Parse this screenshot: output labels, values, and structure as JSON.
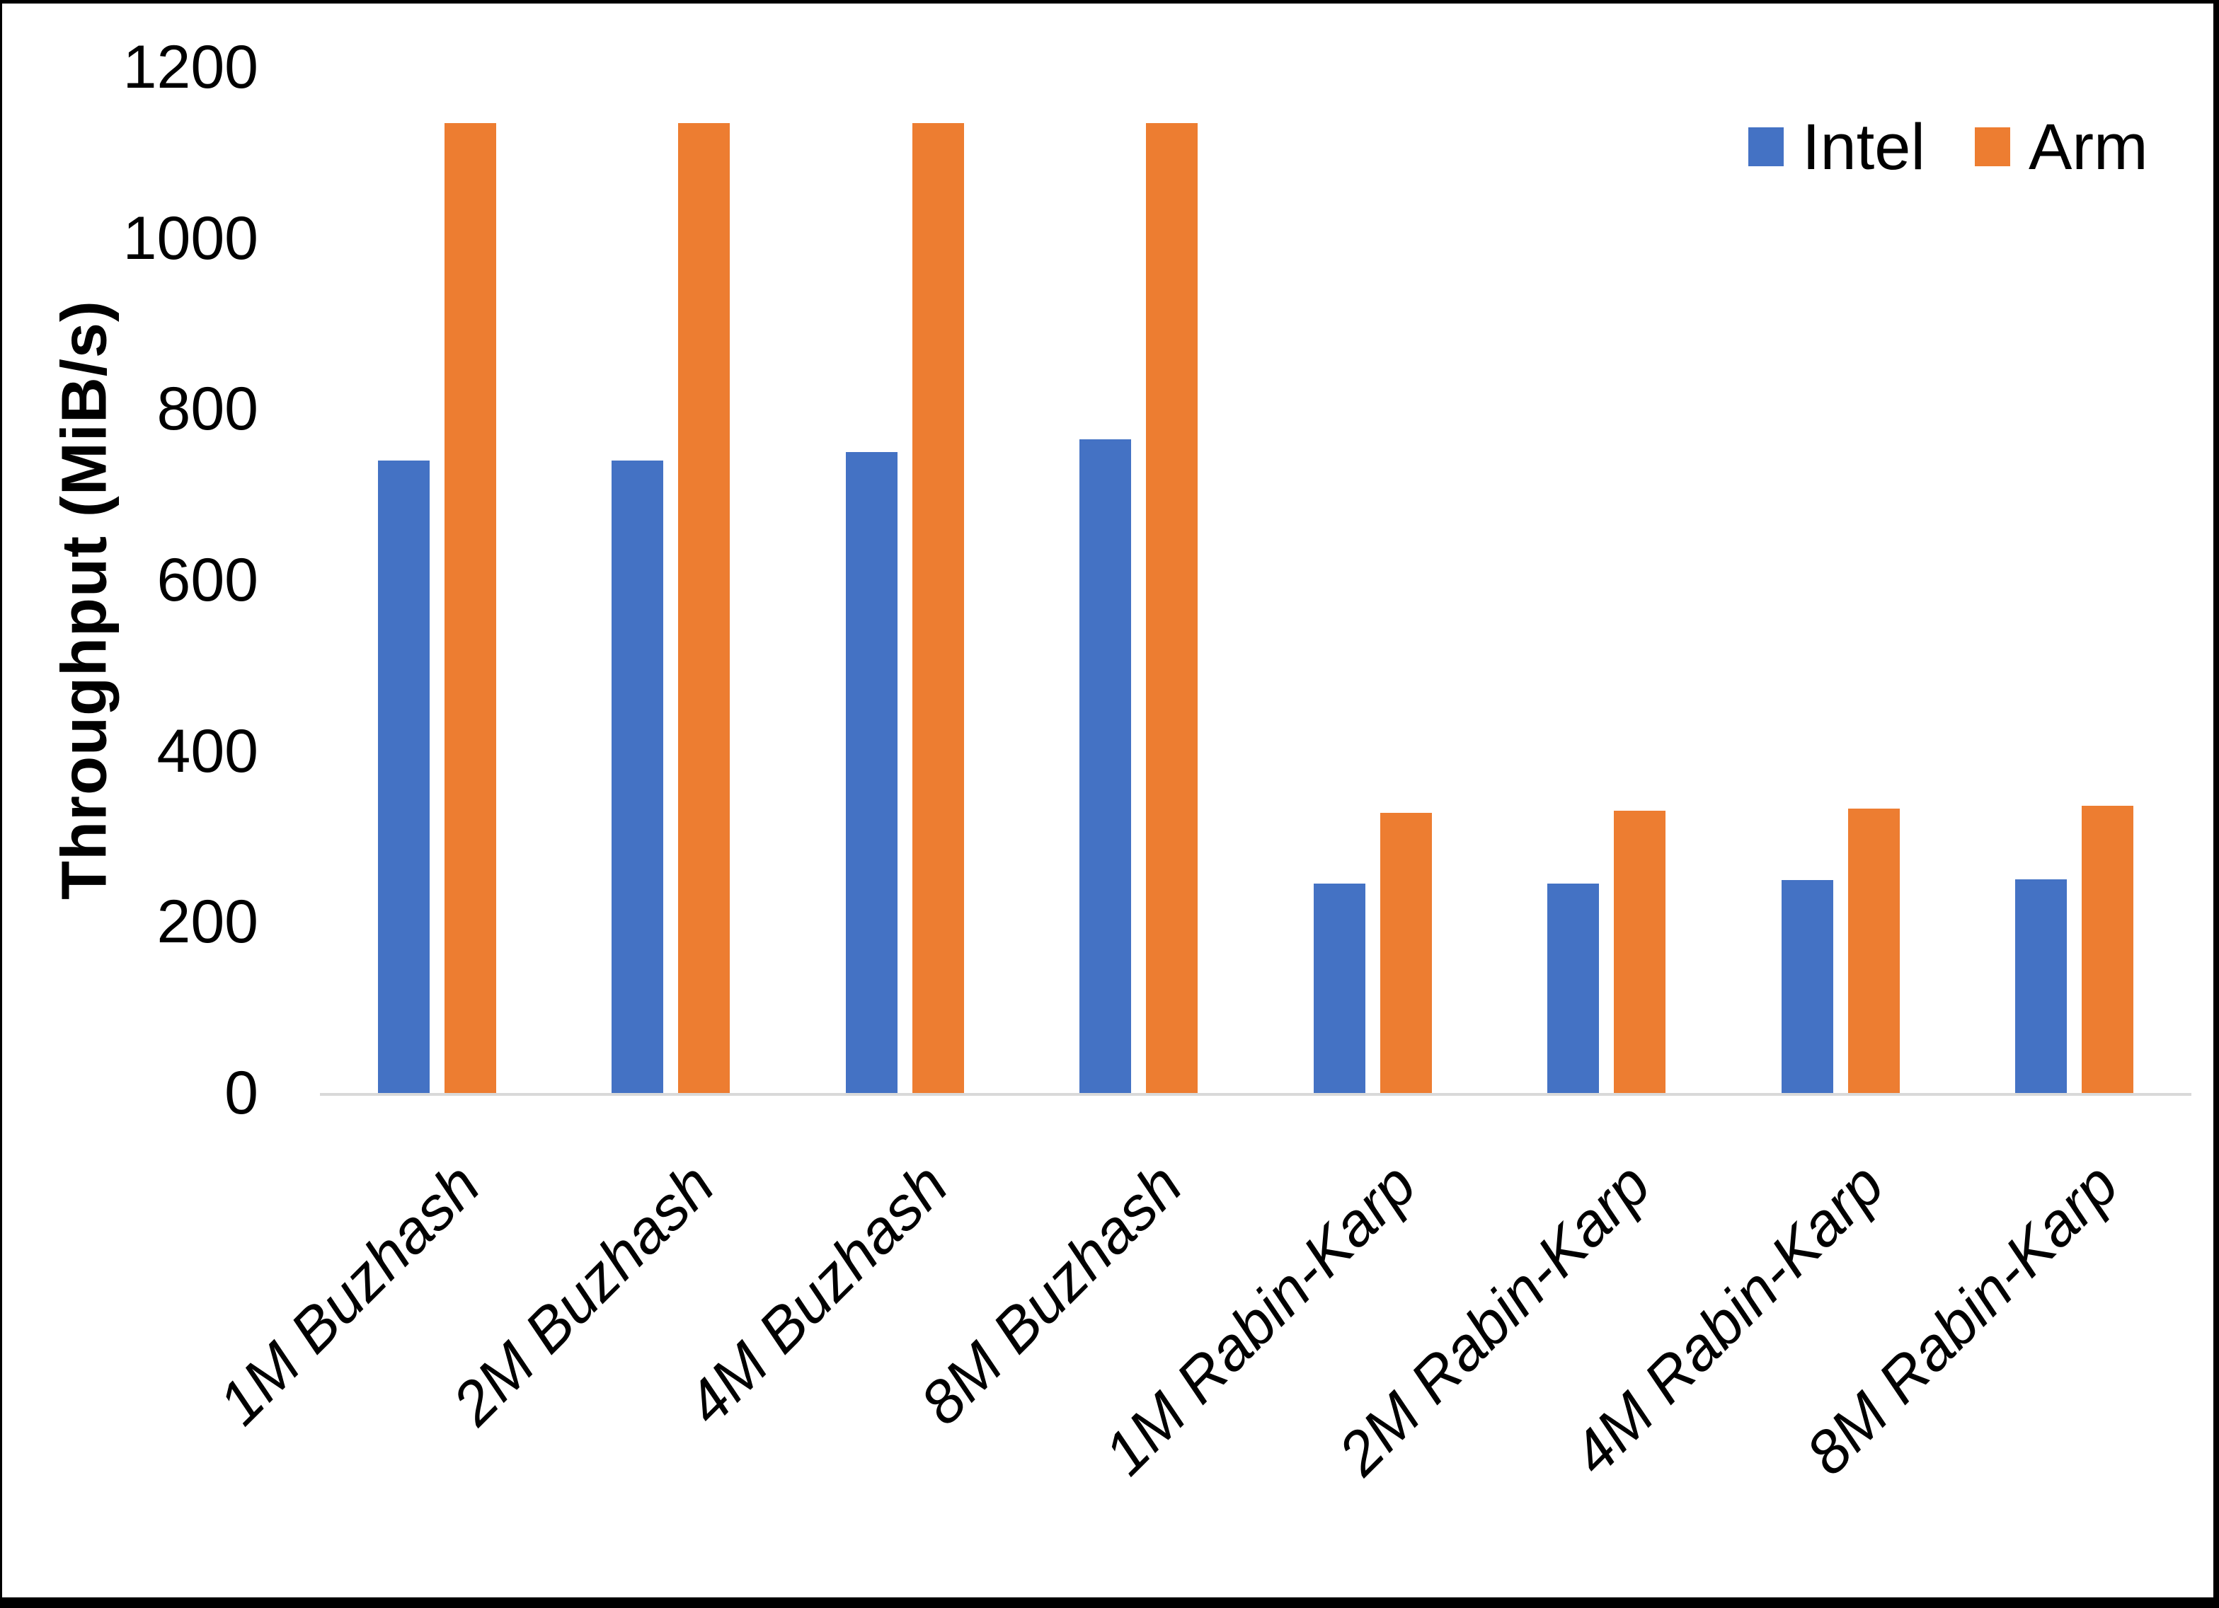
{
  "chart_data": {
    "type": "bar",
    "title": "",
    "xlabel": "",
    "ylabel": "Throughput (MiB/s)",
    "ylim": [
      0,
      1200
    ],
    "yticks": [
      0,
      200,
      400,
      600,
      800,
      1000,
      1200
    ],
    "grid": false,
    "legend_position": "top-right",
    "axis_line_color": "#d9d9d9",
    "text_color": "#000000",
    "background_color": "#ffffff",
    "categories": [
      "1M Buzhash",
      "2M Buzhash",
      "4M Buzhash",
      "8M Buzhash",
      "1M Rabin-Karp",
      "2M Rabin-Karp",
      "4M Rabin-Karp",
      "8M Rabin-Karp"
    ],
    "series": [
      {
        "name": "Intel",
        "color": "#4472c4",
        "values": [
          740,
          740,
          750,
          765,
          245,
          245,
          249,
          250
        ]
      },
      {
        "name": "Arm",
        "color": "#ed7d31",
        "values": [
          1135,
          1135,
          1135,
          1135,
          328,
          330,
          333,
          336
        ]
      }
    ]
  }
}
